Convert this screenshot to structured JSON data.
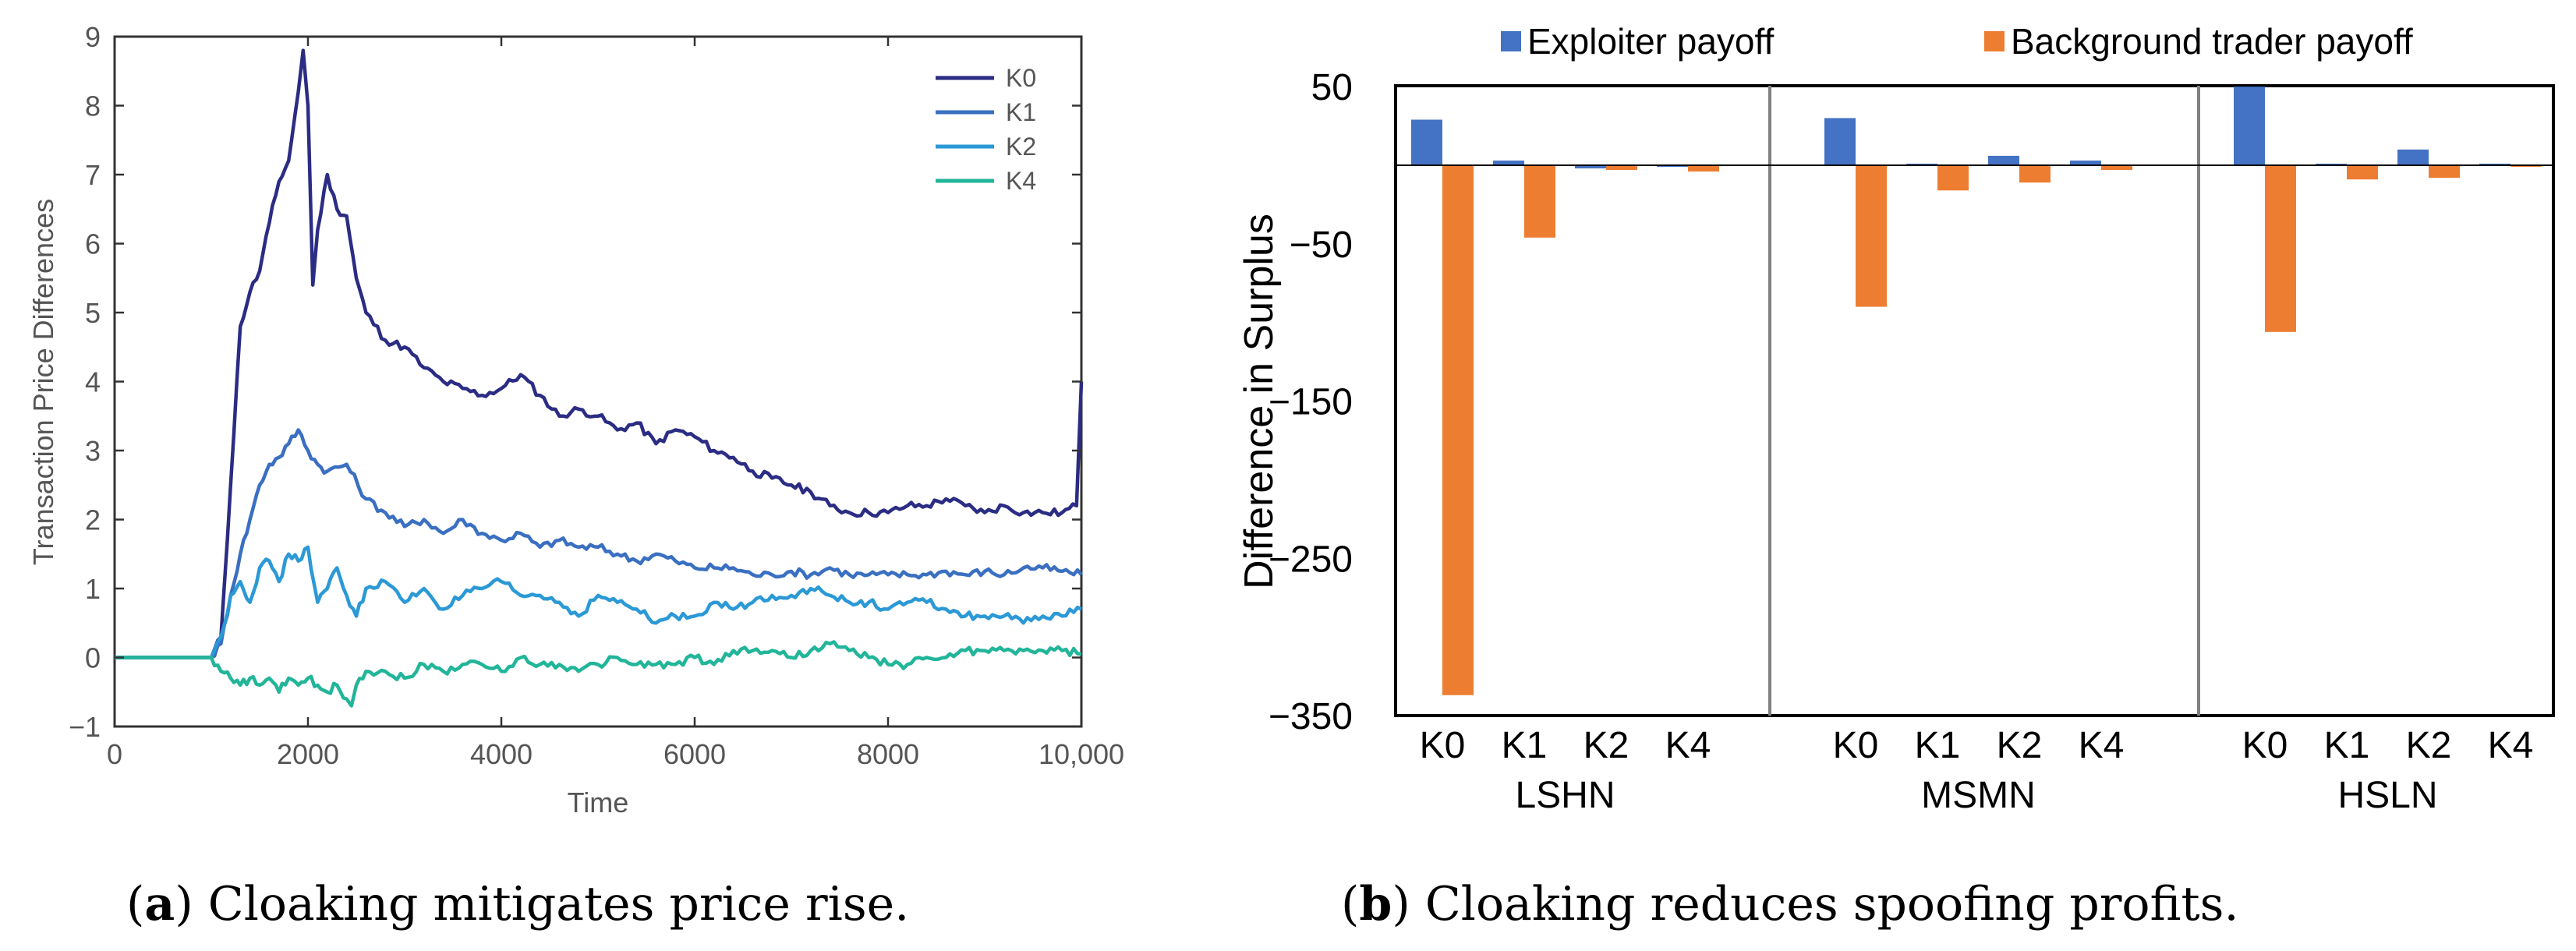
{
  "chart_data": [
    {
      "type": "line",
      "title": "",
      "xlabel": "Time",
      "ylabel": "Transaction Price Differences",
      "xlim": [
        0,
        10000
      ],
      "ylim": [
        -1,
        9
      ],
      "x_ticks": [
        0,
        2000,
        4000,
        6000,
        8000,
        10000
      ],
      "x_tick_labels": [
        "0",
        "2000",
        "4000",
        "6000",
        "8000",
        "10,000"
      ],
      "y_ticks": [
        -1,
        0,
        1,
        2,
        3,
        4,
        5,
        6,
        7,
        8,
        9
      ],
      "y_tick_labels": [
        "−1",
        "0",
        "1",
        "2",
        "3",
        "4",
        "5",
        "6",
        "7",
        "8",
        "9"
      ],
      "legend_position": "top-right",
      "series": [
        {
          "name": "K0",
          "color": "#2b2c83",
          "points": [
            [
              0,
              0
            ],
            [
              1000,
              0
            ],
            [
              1100,
              0.3
            ],
            [
              1200,
              2.5
            ],
            [
              1300,
              4.8
            ],
            [
              1400,
              5.3
            ],
            [
              1500,
              5.6
            ],
            [
              1600,
              6.3
            ],
            [
              1700,
              6.9
            ],
            [
              1800,
              7.2
            ],
            [
              1900,
              8.2
            ],
            [
              1950,
              8.8
            ],
            [
              2000,
              8.0
            ],
            [
              2050,
              5.4
            ],
            [
              2100,
              6.2
            ],
            [
              2200,
              7.0
            ],
            [
              2300,
              6.5
            ],
            [
              2400,
              6.4
            ],
            [
              2500,
              5.5
            ],
            [
              2600,
              5.0
            ],
            [
              2800,
              4.6
            ],
            [
              3000,
              4.5
            ],
            [
              3200,
              4.2
            ],
            [
              3400,
              4.0
            ],
            [
              3600,
              3.9
            ],
            [
              3800,
              3.8
            ],
            [
              4000,
              3.9
            ],
            [
              4200,
              4.1
            ],
            [
              4400,
              3.8
            ],
            [
              4600,
              3.5
            ],
            [
              4800,
              3.6
            ],
            [
              5000,
              3.5
            ],
            [
              5200,
              3.3
            ],
            [
              5400,
              3.4
            ],
            [
              5600,
              3.1
            ],
            [
              5800,
              3.3
            ],
            [
              6000,
              3.2
            ],
            [
              6200,
              3.0
            ],
            [
              6400,
              2.9
            ],
            [
              6600,
              2.7
            ],
            [
              6800,
              2.6
            ],
            [
              7000,
              2.5
            ],
            [
              7200,
              2.4
            ],
            [
              7400,
              2.2
            ],
            [
              7600,
              2.1
            ],
            [
              7800,
              2.1
            ],
            [
              8000,
              2.1
            ],
            [
              8200,
              2.2
            ],
            [
              8400,
              2.2
            ],
            [
              8600,
              2.3
            ],
            [
              8800,
              2.2
            ],
            [
              9000,
              2.1
            ],
            [
              9200,
              2.2
            ],
            [
              9400,
              2.1
            ],
            [
              9600,
              2.1
            ],
            [
              9800,
              2.1
            ],
            [
              9950,
              2.2
            ],
            [
              10000,
              4.0
            ]
          ]
        },
        {
          "name": "K1",
          "color": "#3a6fc1",
          "points": [
            [
              0,
              0
            ],
            [
              1000,
              0
            ],
            [
              1100,
              0.2
            ],
            [
              1200,
              0.9
            ],
            [
              1300,
              1.5
            ],
            [
              1400,
              2.0
            ],
            [
              1500,
              2.5
            ],
            [
              1600,
              2.8
            ],
            [
              1700,
              2.9
            ],
            [
              1800,
              3.1
            ],
            [
              1900,
              3.3
            ],
            [
              2000,
              3.0
            ],
            [
              2100,
              2.8
            ],
            [
              2200,
              2.7
            ],
            [
              2400,
              2.8
            ],
            [
              2600,
              2.3
            ],
            [
              2800,
              2.1
            ],
            [
              3000,
              1.9
            ],
            [
              3200,
              2.0
            ],
            [
              3400,
              1.8
            ],
            [
              3600,
              2.0
            ],
            [
              3800,
              1.8
            ],
            [
              4000,
              1.7
            ],
            [
              4200,
              1.8
            ],
            [
              4400,
              1.6
            ],
            [
              4600,
              1.7
            ],
            [
              4800,
              1.6
            ],
            [
              5000,
              1.6
            ],
            [
              5200,
              1.5
            ],
            [
              5400,
              1.4
            ],
            [
              5600,
              1.5
            ],
            [
              5800,
              1.4
            ],
            [
              6000,
              1.3
            ],
            [
              6200,
              1.3
            ],
            [
              6400,
              1.3
            ],
            [
              6600,
              1.2
            ],
            [
              6800,
              1.2
            ],
            [
              7000,
              1.25
            ],
            [
              7200,
              1.2
            ],
            [
              7400,
              1.3
            ],
            [
              7600,
              1.2
            ],
            [
              7800,
              1.2
            ],
            [
              8000,
              1.2
            ],
            [
              8200,
              1.2
            ],
            [
              8400,
              1.2
            ],
            [
              8600,
              1.25
            ],
            [
              8800,
              1.2
            ],
            [
              9000,
              1.25
            ],
            [
              9200,
              1.2
            ],
            [
              9400,
              1.3
            ],
            [
              9600,
              1.3
            ],
            [
              9800,
              1.25
            ],
            [
              10000,
              1.2
            ]
          ]
        },
        {
          "name": "K2",
          "color": "#2b99d6",
          "points": [
            [
              0,
              0
            ],
            [
              1000,
              0
            ],
            [
              1100,
              0.3
            ],
            [
              1200,
              0.9
            ],
            [
              1300,
              1.1
            ],
            [
              1400,
              0.8
            ],
            [
              1500,
              1.3
            ],
            [
              1600,
              1.4
            ],
            [
              1700,
              1.1
            ],
            [
              1800,
              1.5
            ],
            [
              1900,
              1.4
            ],
            [
              2000,
              1.6
            ],
            [
              2100,
              0.8
            ],
            [
              2200,
              1.0
            ],
            [
              2300,
              1.3
            ],
            [
              2400,
              0.9
            ],
            [
              2500,
              0.6
            ],
            [
              2600,
              1.0
            ],
            [
              2800,
              1.1
            ],
            [
              3000,
              0.8
            ],
            [
              3200,
              1.0
            ],
            [
              3400,
              0.7
            ],
            [
              3600,
              0.9
            ],
            [
              3800,
              1.0
            ],
            [
              4000,
              1.1
            ],
            [
              4200,
              0.9
            ],
            [
              4400,
              0.9
            ],
            [
              4600,
              0.8
            ],
            [
              4800,
              0.6
            ],
            [
              5000,
              0.9
            ],
            [
              5200,
              0.8
            ],
            [
              5400,
              0.7
            ],
            [
              5600,
              0.5
            ],
            [
              5800,
              0.6
            ],
            [
              6000,
              0.6
            ],
            [
              6200,
              0.8
            ],
            [
              6400,
              0.7
            ],
            [
              6600,
              0.8
            ],
            [
              6800,
              0.9
            ],
            [
              7000,
              0.9
            ],
            [
              7200,
              1.0
            ],
            [
              7400,
              0.9
            ],
            [
              7600,
              0.8
            ],
            [
              7800,
              0.8
            ],
            [
              8000,
              0.7
            ],
            [
              8200,
              0.8
            ],
            [
              8400,
              0.8
            ],
            [
              8600,
              0.7
            ],
            [
              8800,
              0.6
            ],
            [
              9000,
              0.6
            ],
            [
              9200,
              0.6
            ],
            [
              9400,
              0.5
            ],
            [
              9600,
              0.6
            ],
            [
              9800,
              0.6
            ],
            [
              10000,
              0.7
            ]
          ]
        },
        {
          "name": "K4",
          "color": "#22b59a",
          "points": [
            [
              0,
              0
            ],
            [
              1000,
              0
            ],
            [
              1100,
              -0.2
            ],
            [
              1200,
              -0.3
            ],
            [
              1300,
              -0.4
            ],
            [
              1400,
              -0.3
            ],
            [
              1500,
              -0.4
            ],
            [
              1600,
              -0.3
            ],
            [
              1700,
              -0.5
            ],
            [
              1800,
              -0.3
            ],
            [
              1900,
              -0.4
            ],
            [
              2000,
              -0.3
            ],
            [
              2100,
              -0.4
            ],
            [
              2200,
              -0.5
            ],
            [
              2300,
              -0.4
            ],
            [
              2400,
              -0.6
            ],
            [
              2450,
              -0.7
            ],
            [
              2500,
              -0.4
            ],
            [
              2600,
              -0.2
            ],
            [
              2800,
              -0.2
            ],
            [
              3000,
              -0.3
            ],
            [
              3200,
              -0.1
            ],
            [
              3400,
              -0.2
            ],
            [
              3600,
              -0.1
            ],
            [
              3800,
              -0.1
            ],
            [
              4000,
              -0.2
            ],
            [
              4200,
              0.0
            ],
            [
              4400,
              -0.1
            ],
            [
              4600,
              -0.1
            ],
            [
              4800,
              -0.2
            ],
            [
              5000,
              -0.1
            ],
            [
              5200,
              0.0
            ],
            [
              5400,
              -0.1
            ],
            [
              5600,
              -0.1
            ],
            [
              5800,
              -0.1
            ],
            [
              6000,
              0.0
            ],
            [
              6200,
              -0.1
            ],
            [
              6400,
              0.1
            ],
            [
              6600,
              0.1
            ],
            [
              6800,
              0.1
            ],
            [
              7000,
              0.0
            ],
            [
              7200,
              0.1
            ],
            [
              7400,
              0.2
            ],
            [
              7600,
              0.1
            ],
            [
              7800,
              0.0
            ],
            [
              8000,
              -0.1
            ],
            [
              8200,
              -0.1
            ],
            [
              8400,
              0.0
            ],
            [
              8600,
              0.0
            ],
            [
              8800,
              0.1
            ],
            [
              9000,
              0.1
            ],
            [
              9200,
              0.1
            ],
            [
              9400,
              0.1
            ],
            [
              9600,
              0.1
            ],
            [
              9800,
              0.1
            ],
            [
              10000,
              0.05
            ]
          ]
        }
      ]
    },
    {
      "type": "bar",
      "title": "",
      "xlabel": "",
      "ylabel": "Difference in Surplus",
      "ylim": [
        -350,
        50
      ],
      "y_ticks": [
        50,
        -50,
        -150,
        -250,
        -350
      ],
      "y_tick_labels": [
        "50",
        "−50",
        "−150",
        "−250",
        "−350"
      ],
      "legend_position": "top",
      "groups": [
        "LSHN",
        "MSMN",
        "HSLN"
      ],
      "categories": [
        "K0",
        "K1",
        "K2",
        "K4"
      ],
      "series": [
        {
          "name": "Exploiter payoff",
          "color": "#4472c4",
          "values": [
            [
              29,
              3,
              -2,
              -1
            ],
            [
              30,
              1,
              6,
              3
            ],
            [
              50,
              1,
              10,
              1
            ]
          ]
        },
        {
          "name": "Background trader payoff",
          "color": "#ed7d31",
          "values": [
            [
              -337,
              -46,
              -3,
              -4
            ],
            [
              -90,
              -16,
              -11,
              -3
            ],
            [
              -106,
              -9,
              -8,
              -1
            ]
          ]
        }
      ]
    }
  ],
  "captions": {
    "a_label": "a",
    "a_text": ") Cloaking mitigates price rise.",
    "b_label": "b",
    "b_text": ") Cloaking reduces spoofing profits.",
    "open_paren": "("
  }
}
